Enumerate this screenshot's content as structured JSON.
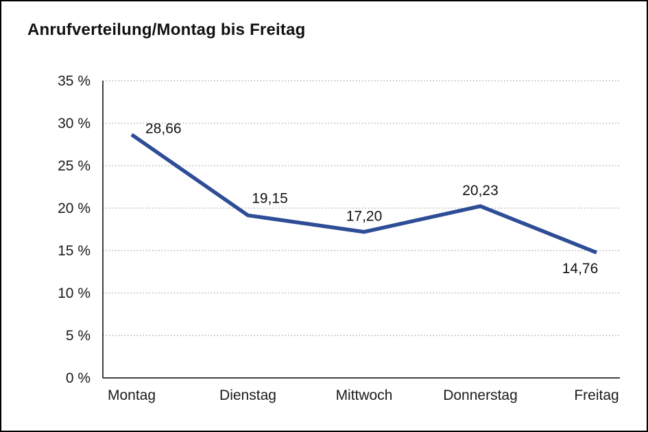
{
  "page": {
    "title": "Anrufverteilung/Montag bis Freitag"
  },
  "chart_data": {
    "type": "line",
    "title": "Anrufverteilung/Montag bis Freitag",
    "categories": [
      "Montag",
      "Dienstag",
      "Mittwoch",
      "Donnerstag",
      "Freitag"
    ],
    "values": [
      28.66,
      19.15,
      17.2,
      20.23,
      14.76
    ],
    "point_labels": [
      "28,66",
      "19,15",
      "17,20",
      "20,23",
      "14,76"
    ],
    "xlabel": "",
    "ylabel": "",
    "ylim": [
      0,
      35
    ],
    "ytick_values": [
      0,
      5,
      10,
      15,
      20,
      25,
      30,
      35
    ],
    "ytick_labels": [
      "0 %",
      "5 %",
      "10 %",
      "15 %",
      "20 %",
      "25 %",
      "30 %",
      "35 %"
    ],
    "grid": "horizontal-dotted",
    "legend": "none",
    "line_color": "#2E4D96",
    "axis_color": "#000000",
    "gridline_color": "#8a8a8a",
    "text_color": "#1a1a1a"
  }
}
